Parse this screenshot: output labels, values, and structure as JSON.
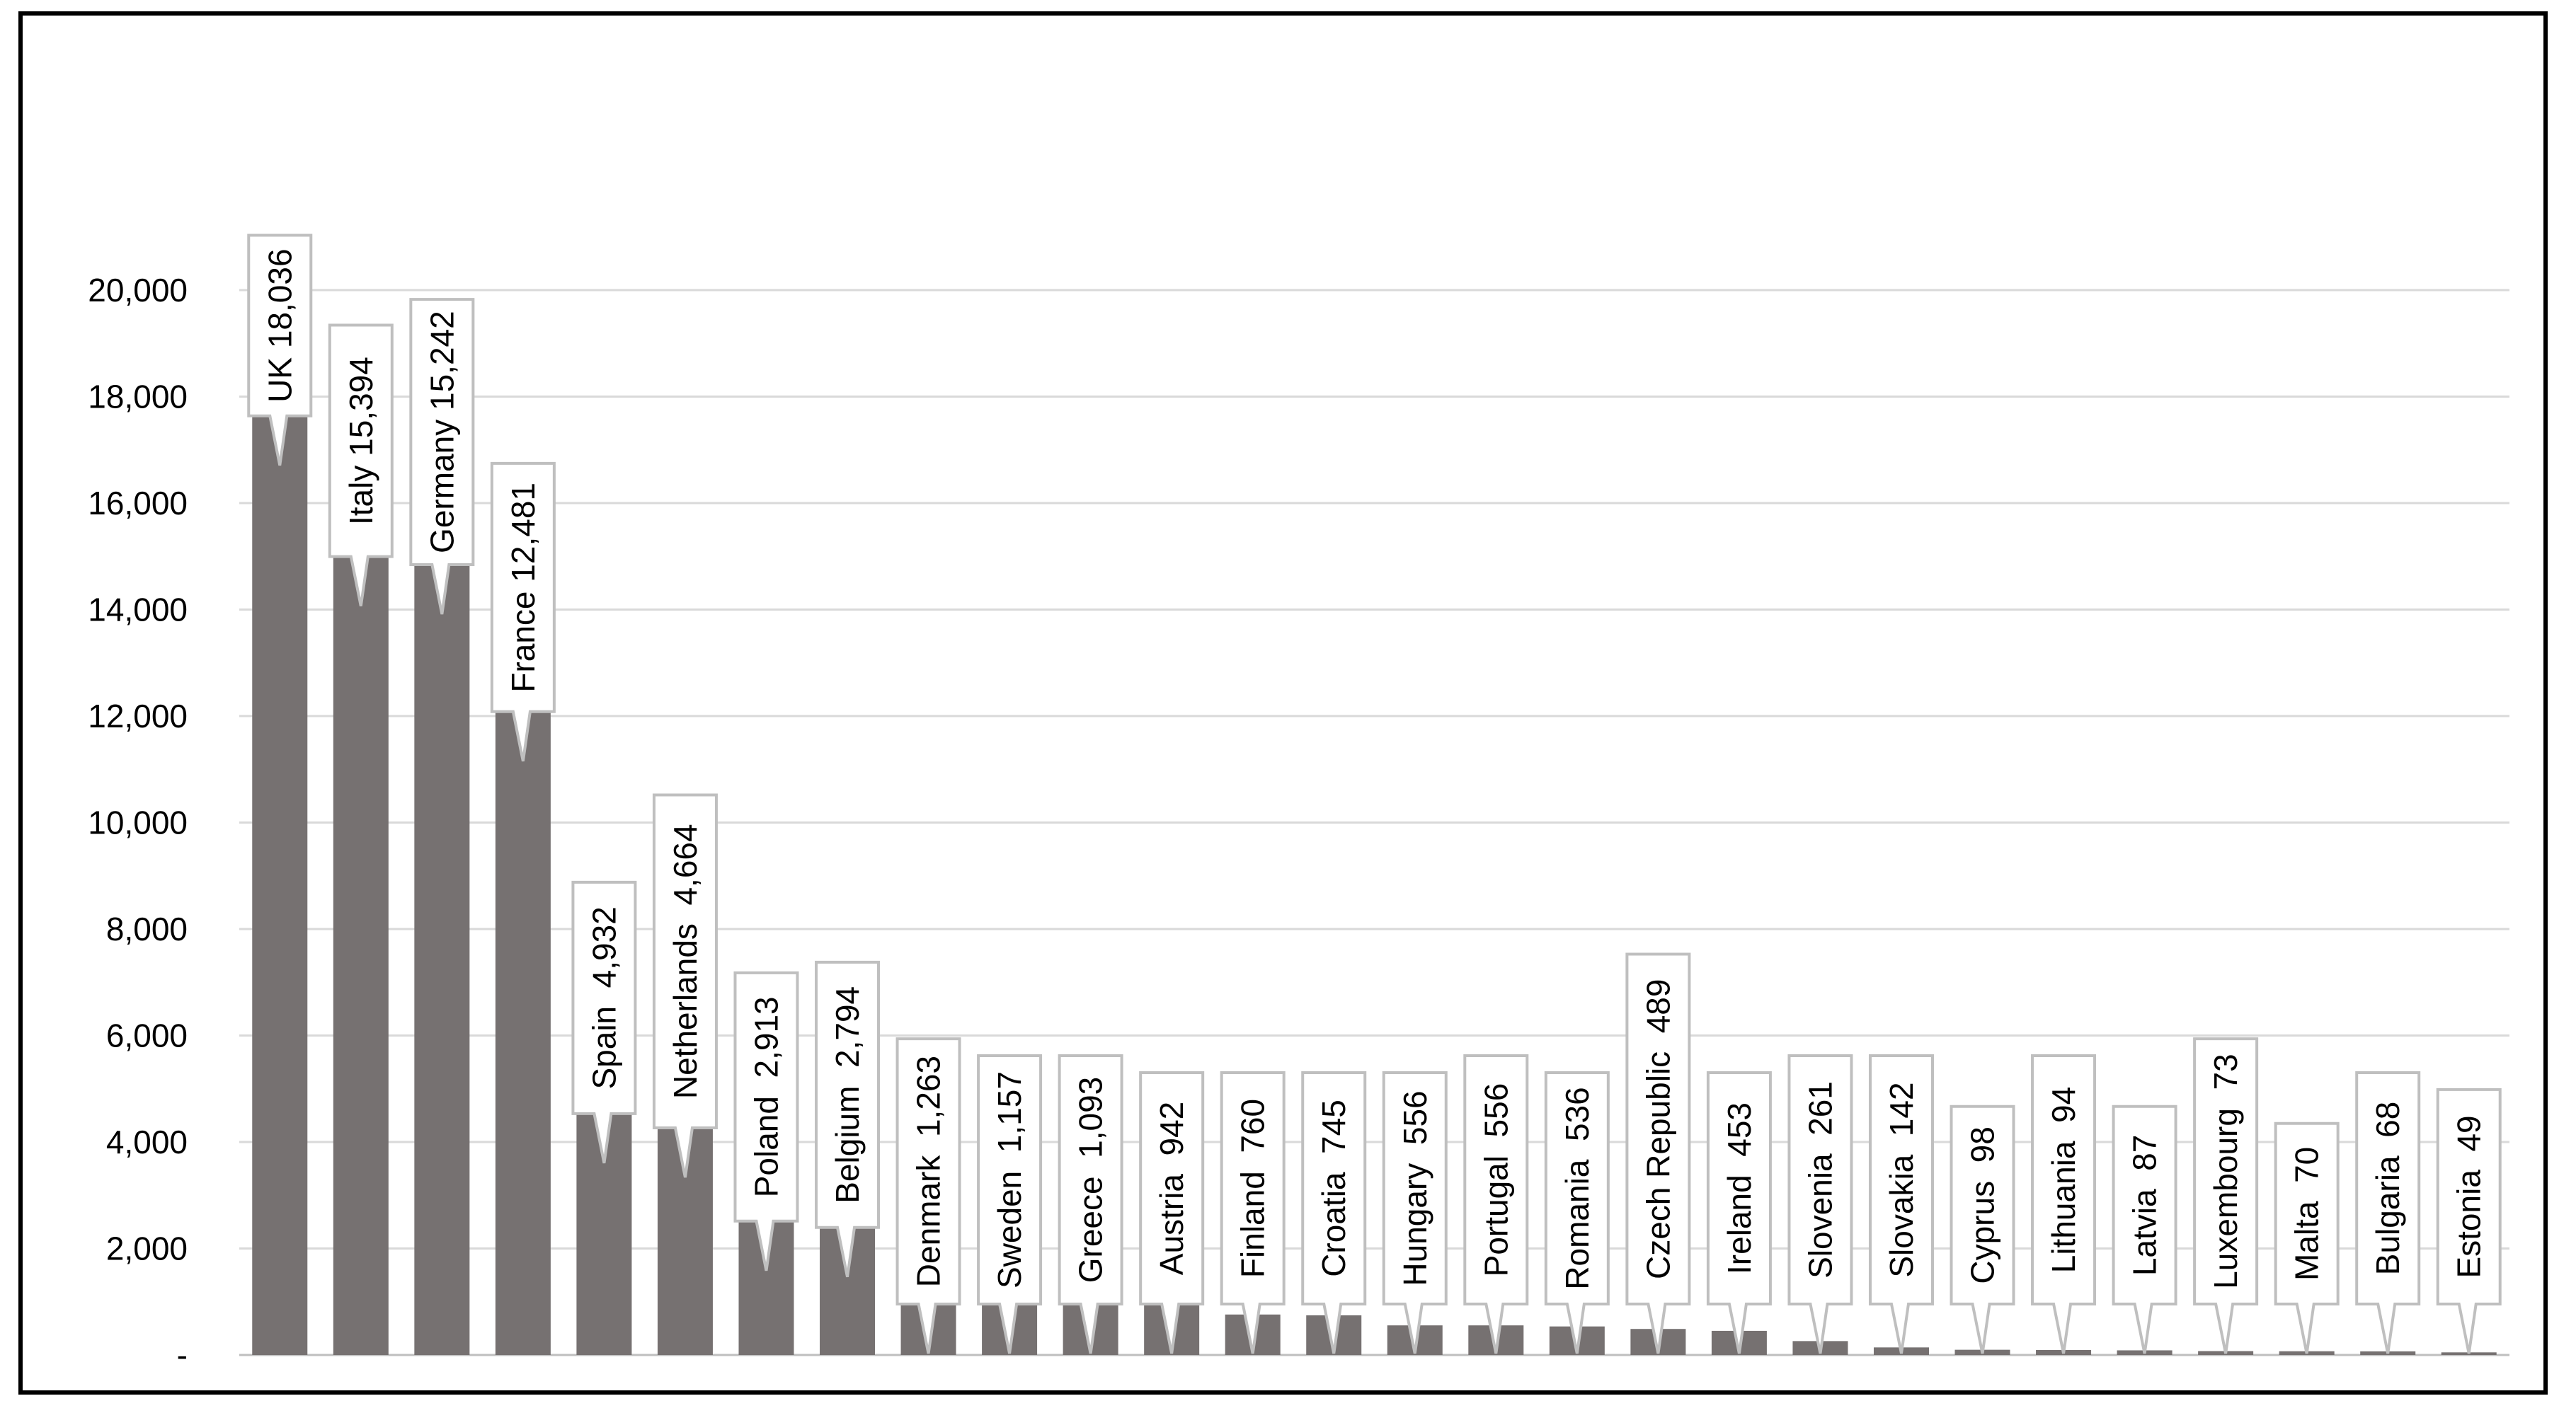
{
  "chart_data": {
    "type": "bar",
    "title": "",
    "xlabel": "",
    "ylabel": "",
    "ylim": [
      0,
      22000
    ],
    "y_ticks": [
      0,
      2000,
      4000,
      6000,
      8000,
      10000,
      12000,
      14000,
      16000,
      18000,
      20000
    ],
    "y_tick_labels": [
      "-",
      "2,000",
      "4,000",
      "6,000",
      "8,000",
      "10,000",
      "12,000",
      "14,000",
      "16,000",
      "18,000",
      "20,000"
    ],
    "grid": true,
    "legend": "none",
    "bar_color": "#767171",
    "categories": [
      "UK",
      "Italy",
      "Germany",
      "France",
      "Spain",
      "Netherlands",
      "Poland",
      "Belgium",
      "Denmark",
      "Sweden",
      "Greece",
      "Austria",
      "Finland",
      "Croatia",
      "Hungary",
      "Portugal",
      "Romania",
      "Czech Republic",
      "Ireland",
      "Slovenia",
      "Slovakia",
      "Cyprus",
      "Lithuania",
      "Latvia",
      "Luxembourg",
      "Malta",
      "Bulgaria",
      "Estonia"
    ],
    "values": [
      18036,
      15394,
      15242,
      12481,
      4932,
      4664,
      2913,
      2794,
      1263,
      1157,
      1093,
      942,
      760,
      745,
      556,
      556,
      536,
      489,
      453,
      261,
      142,
      98,
      94,
      87,
      73,
      70,
      68,
      49
    ],
    "data_labels": [
      "UK 18,036",
      "Italy 15,394",
      "Germany 15,242",
      "France 12,481",
      "Spain  4,932",
      "Netherlands  4,664",
      "Poland  2,913",
      "Belgium  2,794",
      "Denmark  1,263",
      "Sweden  1,157",
      "Greece  1,093",
      "Austria  942",
      "Finland  760",
      "Croatia  745",
      "Hungary  556",
      "Portugal  556",
      "Romania  536",
      "Czech Republic  489",
      "Ireland  453",
      "Slovenia  261",
      "Slovakia  142",
      "Cyprus  98",
      "Lithuania  94",
      "Latvia  87",
      "Luxembourg  73",
      "Malta  70",
      "Bulgaria  68",
      "Estonia  49"
    ]
  }
}
